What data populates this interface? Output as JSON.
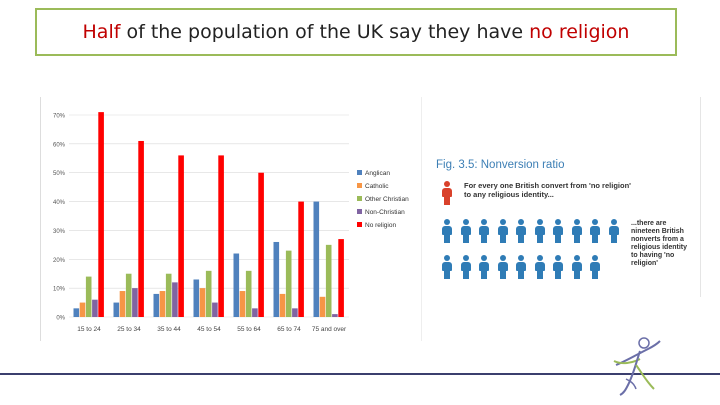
{
  "slide": {
    "title_part1": "Half",
    "title_part2": " of the population of the UK say they have ",
    "title_part3": "no religion"
  },
  "chart_data": {
    "type": "bar",
    "categories": [
      "15 to 24",
      "25 to 34",
      "35 to 44",
      "45 to 54",
      "55 to 64",
      "65 to 74",
      "75 and over"
    ],
    "series": [
      {
        "name": "Anglican",
        "color": "#4f81bd",
        "values": [
          3,
          5,
          8,
          13,
          22,
          26,
          40
        ]
      },
      {
        "name": "Catholic",
        "color": "#f79646",
        "values": [
          5,
          9,
          9,
          10,
          9,
          8,
          7
        ]
      },
      {
        "name": "Other Christian",
        "color": "#9bbb59",
        "values": [
          14,
          15,
          15,
          16,
          16,
          23,
          25
        ]
      },
      {
        "name": "Non-Christian",
        "color": "#8064a2",
        "values": [
          6,
          10,
          12,
          5,
          3,
          3,
          1
        ]
      },
      {
        "name": "No religion",
        "color": "#ff0000",
        "values": [
          71,
          61,
          56,
          56,
          50,
          40,
          27
        ]
      }
    ],
    "yticks": [
      "0%",
      "10%",
      "20%",
      "30%",
      "40%",
      "50%",
      "60%",
      "70%"
    ],
    "ylim": [
      0,
      70
    ],
    "legend": "right"
  },
  "infographic": {
    "fig_title": "Fig. 3.5: Nonversion ratio",
    "convert_text": "For every one British convert from 'no religion' to any religious identity...",
    "nonvert_text": "...there are nineteen British nonverts from a religious identity to having 'no religion'",
    "red_count": 1,
    "blue_count": 19,
    "colors": {
      "convert": "#d9412b",
      "nonvert": "#2f7cb6"
    }
  },
  "logo": {
    "icon": "dancing-figure-logo"
  }
}
